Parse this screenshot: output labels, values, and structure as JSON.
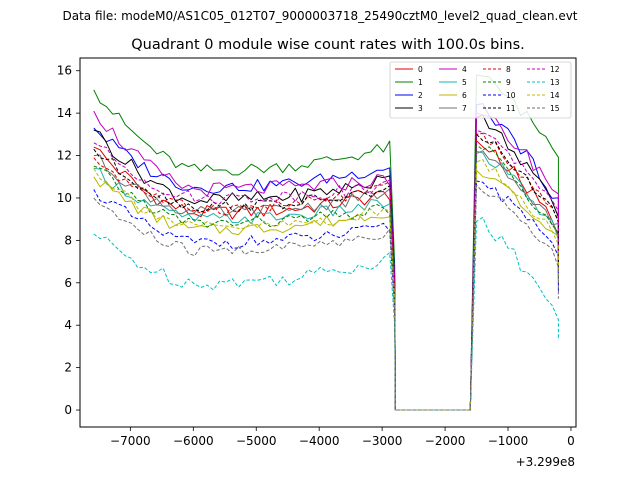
{
  "figure": {
    "suptitle": "Data file: modeM0/AS1C05_012T07_9000003718_25490cztM0_level2_quad_clean.evt",
    "title": "Quadrant 0 module wise count rates with 100.0s bins.",
    "offset_label": "+3.299e8"
  },
  "chart_data": {
    "type": "line",
    "title": "Quadrant 0 module wise count rates with 100.0s bins.",
    "xlabel": "",
    "ylabel": "",
    "x_offset": 329900000,
    "xlim": [
      -7800,
      80
    ],
    "ylim": [
      -0.8,
      16.6
    ],
    "xticks": [
      -7000,
      -6000,
      -5000,
      -4000,
      -3000,
      -2000,
      -1000,
      0
    ],
    "xtick_labels": [
      "−7000",
      "−6000",
      "−5000",
      "−4000",
      "−3000",
      "−2000",
      "−1000",
      "0"
    ],
    "yticks": [
      0,
      2,
      4,
      6,
      8,
      10,
      12,
      14,
      16
    ],
    "ytick_labels": [
      "0",
      "2",
      "4",
      "6",
      "8",
      "10",
      "12",
      "14",
      "16"
    ],
    "grid": false,
    "legend_position": "top-right",
    "gap": {
      "start": -2790,
      "end": -1600,
      "value": 0
    },
    "segment1": {
      "x_start": -7580,
      "x_end": -2890,
      "step": 100
    },
    "segment2": {
      "x_start": -1500,
      "x_end": -200,
      "step": 100
    },
    "series": [
      {
        "name": "0",
        "color": "#e00000",
        "dash": "solid",
        "s1_start": 12.4,
        "s1_plateau": 9.3,
        "s1_end": 10.2,
        "s2_start": 12.7,
        "s2_end": 8.5,
        "amp": 0.35
      },
      {
        "name": "1",
        "color": "#008000",
        "dash": "solid",
        "s1_start": 15.1,
        "s1_plateau": 11.3,
        "s1_end": 12.4,
        "s2_start": 15.8,
        "s2_end": 12.1,
        "amp": 0.3
      },
      {
        "name": "2",
        "color": "#0000ff",
        "dash": "solid",
        "s1_start": 13.3,
        "s1_plateau": 10.5,
        "s1_end": 11.5,
        "s2_start": 14.4,
        "s2_end": 9.8,
        "amp": 0.3
      },
      {
        "name": "3",
        "color": "#000000",
        "dash": "solid",
        "s1_start": 13.2,
        "s1_plateau": 9.9,
        "s1_end": 10.9,
        "s2_start": 13.8,
        "s2_end": 9.3,
        "amp": 0.35
      },
      {
        "name": "4",
        "color": "#c000c0",
        "dash": "solid",
        "s1_start": 14.1,
        "s1_plateau": 10.4,
        "s1_end": 10.9,
        "s2_start": 14.0,
        "s2_end": 10.2,
        "amp": 0.35
      },
      {
        "name": "5",
        "color": "#20b2aa",
        "dash": "solid",
        "s1_start": 11.4,
        "s1_plateau": 9.0,
        "s1_end": 9.8,
        "s2_start": 12.2,
        "s2_end": 8.3,
        "amp": 0.3
      },
      {
        "name": "6",
        "color": "#b8b800",
        "dash": "solid",
        "s1_start": 11.0,
        "s1_plateau": 8.5,
        "s1_end": 9.4,
        "s2_start": 11.3,
        "s2_end": 7.9,
        "amp": 0.3
      },
      {
        "name": "7",
        "color": "#707070",
        "dash": "solid",
        "s1_start": 12.0,
        "s1_plateau": 9.3,
        "s1_end": 10.3,
        "s2_start": 12.1,
        "s2_end": 8.6,
        "amp": 0.3
      },
      {
        "name": "8",
        "color": "#e00000",
        "dash": "dashed",
        "s1_start": 11.9,
        "s1_plateau": 9.5,
        "s1_end": 10.5,
        "s2_start": 13.0,
        "s2_end": 9.0,
        "amp": 0.3
      },
      {
        "name": "9",
        "color": "#008000",
        "dash": "dashed",
        "s1_start": 11.5,
        "s1_plateau": 8.8,
        "s1_end": 9.5,
        "s2_start": 12.5,
        "s2_end": 8.2,
        "amp": 0.3
      },
      {
        "name": "10",
        "color": "#0000ff",
        "dash": "dashed",
        "s1_start": 10.4,
        "s1_plateau": 7.9,
        "s1_end": 8.6,
        "s2_start": 10.8,
        "s2_end": 7.5,
        "amp": 0.3
      },
      {
        "name": "11",
        "color": "#000000",
        "dash": "dashed",
        "s1_start": 12.3,
        "s1_plateau": 9.6,
        "s1_end": 10.4,
        "s2_start": 13.0,
        "s2_end": 9.1,
        "amp": 0.3
      },
      {
        "name": "12",
        "color": "#c000c0",
        "dash": "dashed",
        "s1_start": 12.6,
        "s1_plateau": 10.0,
        "s1_end": 10.6,
        "s2_start": 13.2,
        "s2_end": 9.5,
        "amp": 0.3
      },
      {
        "name": "13",
        "color": "#00c0c0",
        "dash": "dashed",
        "s1_start": 8.3,
        "s1_plateau": 6.0,
        "s1_end": 7.2,
        "s2_start": 8.9,
        "s2_end": 4.4,
        "amp": 0.35
      },
      {
        "name": "14",
        "color": "#b8b800",
        "dash": "dashed",
        "s1_start": 11.4,
        "s1_plateau": 8.6,
        "s1_end": 9.4,
        "s2_start": 11.7,
        "s2_end": 8.0,
        "amp": 0.3
      },
      {
        "name": "15",
        "color": "#707070",
        "dash": "dashed",
        "s1_start": 10.0,
        "s1_plateau": 7.5,
        "s1_end": 8.4,
        "s2_start": 10.6,
        "s2_end": 7.0,
        "amp": 0.3
      }
    ]
  }
}
